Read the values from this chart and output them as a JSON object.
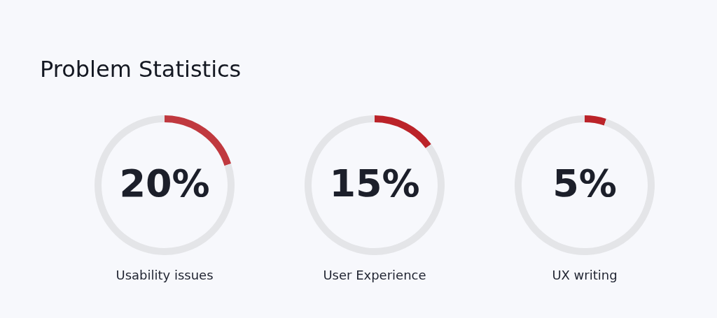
{
  "chart_data": [
    {
      "type": "donut",
      "title": "Problem Statistics",
      "xlabel": "Usability issues",
      "categories": [
        null,
        null
      ],
      "values": [
        20,
        80
      ],
      "colors": [
        "#c0393f",
        "#e4e5e8"
      ],
      "value_labels": [
        "20%",
        null
      ]
    },
    {
      "type": "donut",
      "xlabel": "User Experience",
      "categories": [
        null,
        null
      ],
      "values": [
        15,
        85
      ],
      "colors": [
        "#bb2329",
        "#e4e5e8"
      ],
      "value_labels": [
        "15%",
        null
      ]
    },
    {
      "type": "donut",
      "xlabel": "UX writing",
      "categories": [
        null,
        null
      ],
      "values": [
        5,
        95
      ],
      "colors": [
        "#bb2329",
        "#e4e5e8"
      ],
      "value_labels": [
        "5%",
        null
      ]
    }
  ]
}
